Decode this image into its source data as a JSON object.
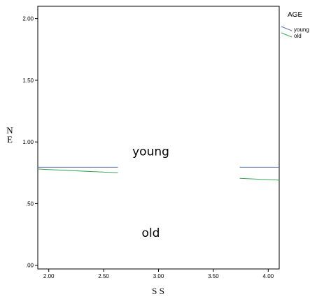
{
  "chart_data": {
    "type": "line",
    "xlabel": "S S",
    "ylabel_lines": [
      "N",
      "E"
    ],
    "xlim": [
      1.9,
      4.1
    ],
    "ylim": [
      -0.03,
      2.1
    ],
    "x_ticks": [
      2.0,
      2.5,
      3.0,
      3.5,
      4.0
    ],
    "x_tick_labels": [
      "2.00",
      "2.50",
      "3.00",
      "3.50",
      "4.00"
    ],
    "y_ticks": [
      0.0,
      0.5,
      1.0,
      1.5,
      2.0
    ],
    "y_tick_labels": [
      ".00",
      ".50",
      "1.00",
      "1.50",
      "2.00"
    ],
    "legend": {
      "title": "AGE",
      "placement": "right",
      "entries": [
        {
          "label": "young",
          "color": "#5b6fa8"
        },
        {
          "label": "old",
          "color": "#3aa65a"
        }
      ]
    },
    "series": [
      {
        "name": "young",
        "color": "#5b6fa8",
        "segments": [
          [
            [
              1.9,
              0.795
            ],
            [
              2.63,
              0.795
            ]
          ],
          [
            [
              3.74,
              0.795
            ],
            [
              4.1,
              0.795
            ]
          ]
        ]
      },
      {
        "name": "old",
        "color": "#3aa65a",
        "segments": [
          [
            [
              1.9,
              0.78
            ],
            [
              2.63,
              0.75
            ]
          ],
          [
            [
              3.74,
              0.705
            ],
            [
              4.1,
              0.69
            ]
          ]
        ]
      }
    ],
    "annotations": [
      {
        "text": "young",
        "x": 2.93,
        "y": 0.89
      },
      {
        "text": "old",
        "x": 2.93,
        "y": 0.23
      }
    ]
  }
}
